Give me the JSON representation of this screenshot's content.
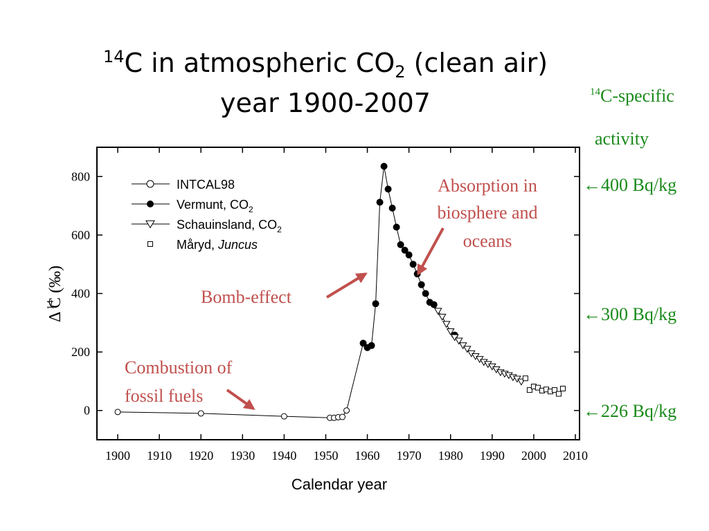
{
  "title": {
    "line1_prefix_sup": "14",
    "line1_a": "C in atmospheric CO",
    "line1_sub": "2",
    "line1_b": " (clean air)",
    "line2": "year 1900-2007"
  },
  "side_panel": {
    "heading_sup": "14",
    "heading_a": "C-specific",
    "heading_b": "activity",
    "markers": [
      "←400 Bq/kg",
      "←300 Bq/kg",
      "←226 Bq/kg"
    ]
  },
  "annotations": {
    "absorption": [
      "Absorption in",
      "biosphere and",
      "oceans"
    ],
    "bomb": "Bomb-effect",
    "combustion": [
      "Combustion of",
      "fossil fuels"
    ]
  },
  "colors": {
    "annotation": "#c0504d",
    "side": "#1a8a1a",
    "axis": "#000000"
  },
  "chart_data": {
    "type": "scatter",
    "xlabel": "Calendar year",
    "ylabel_sup": "14",
    "ylabel": "Δ  C (‰)",
    "xlim": [
      1895,
      2011
    ],
    "ylim": [
      -100,
      900
    ],
    "xticks": [
      1900,
      1910,
      1920,
      1930,
      1940,
      1950,
      1960,
      1970,
      1980,
      1990,
      2000,
      2010
    ],
    "yticks": [
      0,
      200,
      400,
      600,
      800
    ],
    "legend_position": "top-left",
    "series": [
      {
        "name": "INTCAL98",
        "name_sub": "",
        "name_italic": "",
        "marker": "circle-open",
        "line": true,
        "x": [
          1900,
          1920,
          1940,
          1951,
          1952,
          1953,
          1954,
          1955
        ],
        "y": [
          -5,
          -10,
          -20,
          -25,
          -25,
          -23,
          -22,
          0
        ]
      },
      {
        "name": "Vermunt, CO",
        "name_sub": "2",
        "name_italic": "",
        "marker": "circle-filled",
        "line": true,
        "x": [
          1959,
          1960,
          1961,
          1962,
          1963,
          1964,
          1965,
          1966,
          1967,
          1968,
          1969,
          1970,
          1971,
          1972,
          1973,
          1974,
          1975,
          1976,
          1981
        ],
        "y": [
          230,
          215,
          222,
          365,
          712,
          835,
          757,
          692,
          627,
          567,
          548,
          532,
          500,
          467,
          430,
          400,
          370,
          362,
          258
        ]
      },
      {
        "name": "Schauinsland, CO",
        "name_sub": "2",
        "name_italic": "",
        "marker": "triangle-down-open",
        "line": true,
        "x": [
          1977,
          1978,
          1979,
          1980,
          1981,
          1982,
          1983,
          1984,
          1985,
          1986,
          1987,
          1988,
          1989,
          1990,
          1991,
          1992,
          1993,
          1994,
          1995,
          1996,
          1997
        ],
        "y": [
          340,
          320,
          295,
          270,
          250,
          238,
          222,
          210,
          195,
          185,
          175,
          165,
          158,
          150,
          140,
          130,
          125,
          120,
          113,
          108,
          98
        ]
      },
      {
        "name": "Måryd, ",
        "name_sub": "",
        "name_italic": "Juncus",
        "marker": "square-open",
        "line": false,
        "x": [
          1998,
          1999,
          2000,
          2001,
          2002,
          2003,
          2004,
          2005,
          2006,
          2007
        ],
        "y": [
          110,
          70,
          82,
          78,
          68,
          72,
          65,
          70,
          57,
          75
        ]
      }
    ]
  }
}
